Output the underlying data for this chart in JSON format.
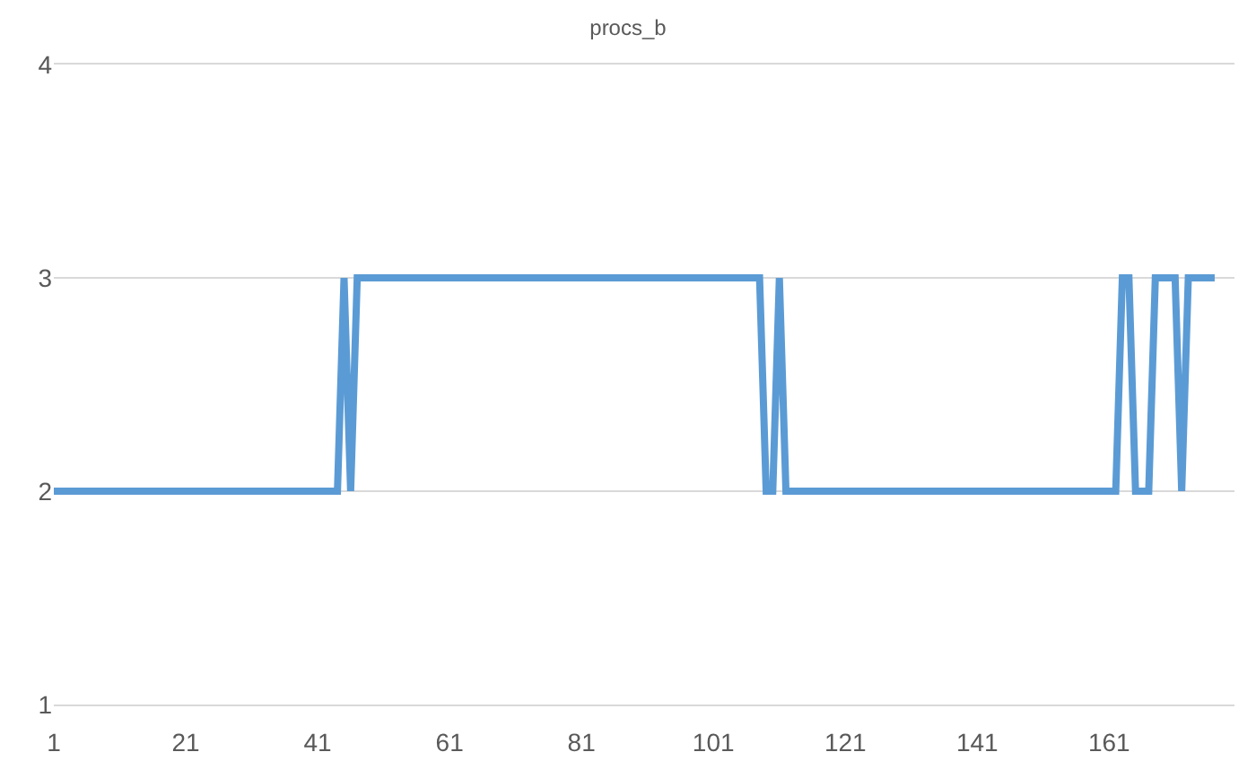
{
  "chart_data": {
    "type": "line",
    "title": "procs_b",
    "x": [
      1,
      2,
      3,
      4,
      5,
      6,
      7,
      8,
      9,
      10,
      11,
      12,
      13,
      14,
      15,
      16,
      17,
      18,
      19,
      20,
      21,
      22,
      23,
      24,
      25,
      26,
      27,
      28,
      29,
      30,
      31,
      32,
      33,
      34,
      35,
      36,
      37,
      38,
      39,
      40,
      41,
      42,
      43,
      44,
      45,
      46,
      47,
      48,
      49,
      50,
      51,
      52,
      53,
      54,
      55,
      56,
      57,
      58,
      59,
      60,
      61,
      62,
      63,
      64,
      65,
      66,
      67,
      68,
      69,
      70,
      71,
      72,
      73,
      74,
      75,
      76,
      77,
      78,
      79,
      80,
      81,
      82,
      83,
      84,
      85,
      86,
      87,
      88,
      89,
      90,
      91,
      92,
      93,
      94,
      95,
      96,
      97,
      98,
      99,
      100,
      101,
      102,
      103,
      104,
      105,
      106,
      107,
      108,
      109,
      110,
      111,
      112,
      113,
      114,
      115,
      116,
      117,
      118,
      119,
      120,
      121,
      122,
      123,
      124,
      125,
      126,
      127,
      128,
      129,
      130,
      131,
      132,
      133,
      134,
      135,
      136,
      137,
      138,
      139,
      140,
      141,
      142,
      143,
      144,
      145,
      146,
      147,
      148,
      149,
      150,
      151,
      152,
      153,
      154,
      155,
      156,
      157,
      158,
      159,
      160,
      161,
      162,
      163,
      164,
      165,
      166,
      167,
      168,
      169,
      170,
      171,
      172,
      173,
      174,
      175,
      176,
      177
    ],
    "series": [
      {
        "color": "#5b9bd5",
        "values": [
          2,
          2,
          2,
          2,
          2,
          2,
          2,
          2,
          2,
          2,
          2,
          2,
          2,
          2,
          2,
          2,
          2,
          2,
          2,
          2,
          2,
          2,
          2,
          2,
          2,
          2,
          2,
          2,
          2,
          2,
          2,
          2,
          2,
          2,
          2,
          2,
          2,
          2,
          2,
          2,
          2,
          2,
          2,
          2,
          3,
          2,
          3,
          3,
          3,
          3,
          3,
          3,
          3,
          3,
          3,
          3,
          3,
          3,
          3,
          3,
          3,
          3,
          3,
          3,
          3,
          3,
          3,
          3,
          3,
          3,
          3,
          3,
          3,
          3,
          3,
          3,
          3,
          3,
          3,
          3,
          3,
          3,
          3,
          3,
          3,
          3,
          3,
          3,
          3,
          3,
          3,
          3,
          3,
          3,
          3,
          3,
          3,
          3,
          3,
          3,
          3,
          3,
          3,
          3,
          3,
          3,
          3,
          3,
          2,
          2,
          3,
          2,
          2,
          2,
          2,
          2,
          2,
          2,
          2,
          2,
          2,
          2,
          2,
          2,
          2,
          2,
          2,
          2,
          2,
          2,
          2,
          2,
          2,
          2,
          2,
          2,
          2,
          2,
          2,
          2,
          2,
          2,
          2,
          2,
          2,
          2,
          2,
          2,
          2,
          2,
          2,
          2,
          2,
          2,
          2,
          2,
          2,
          2,
          2,
          2,
          2,
          2,
          3,
          3,
          2,
          2,
          2,
          3,
          3,
          3,
          3,
          2,
          3,
          3,
          3,
          3,
          3
        ]
      }
    ],
    "xlim": [
      1,
      180
    ],
    "xticks": [
      1,
      21,
      41,
      61,
      81,
      101,
      121,
      141,
      161
    ],
    "ylim": [
      1,
      4
    ],
    "yticks": [
      1,
      2,
      3,
      4
    ],
    "grid": "y",
    "marker": "none",
    "line_style": "solid"
  }
}
